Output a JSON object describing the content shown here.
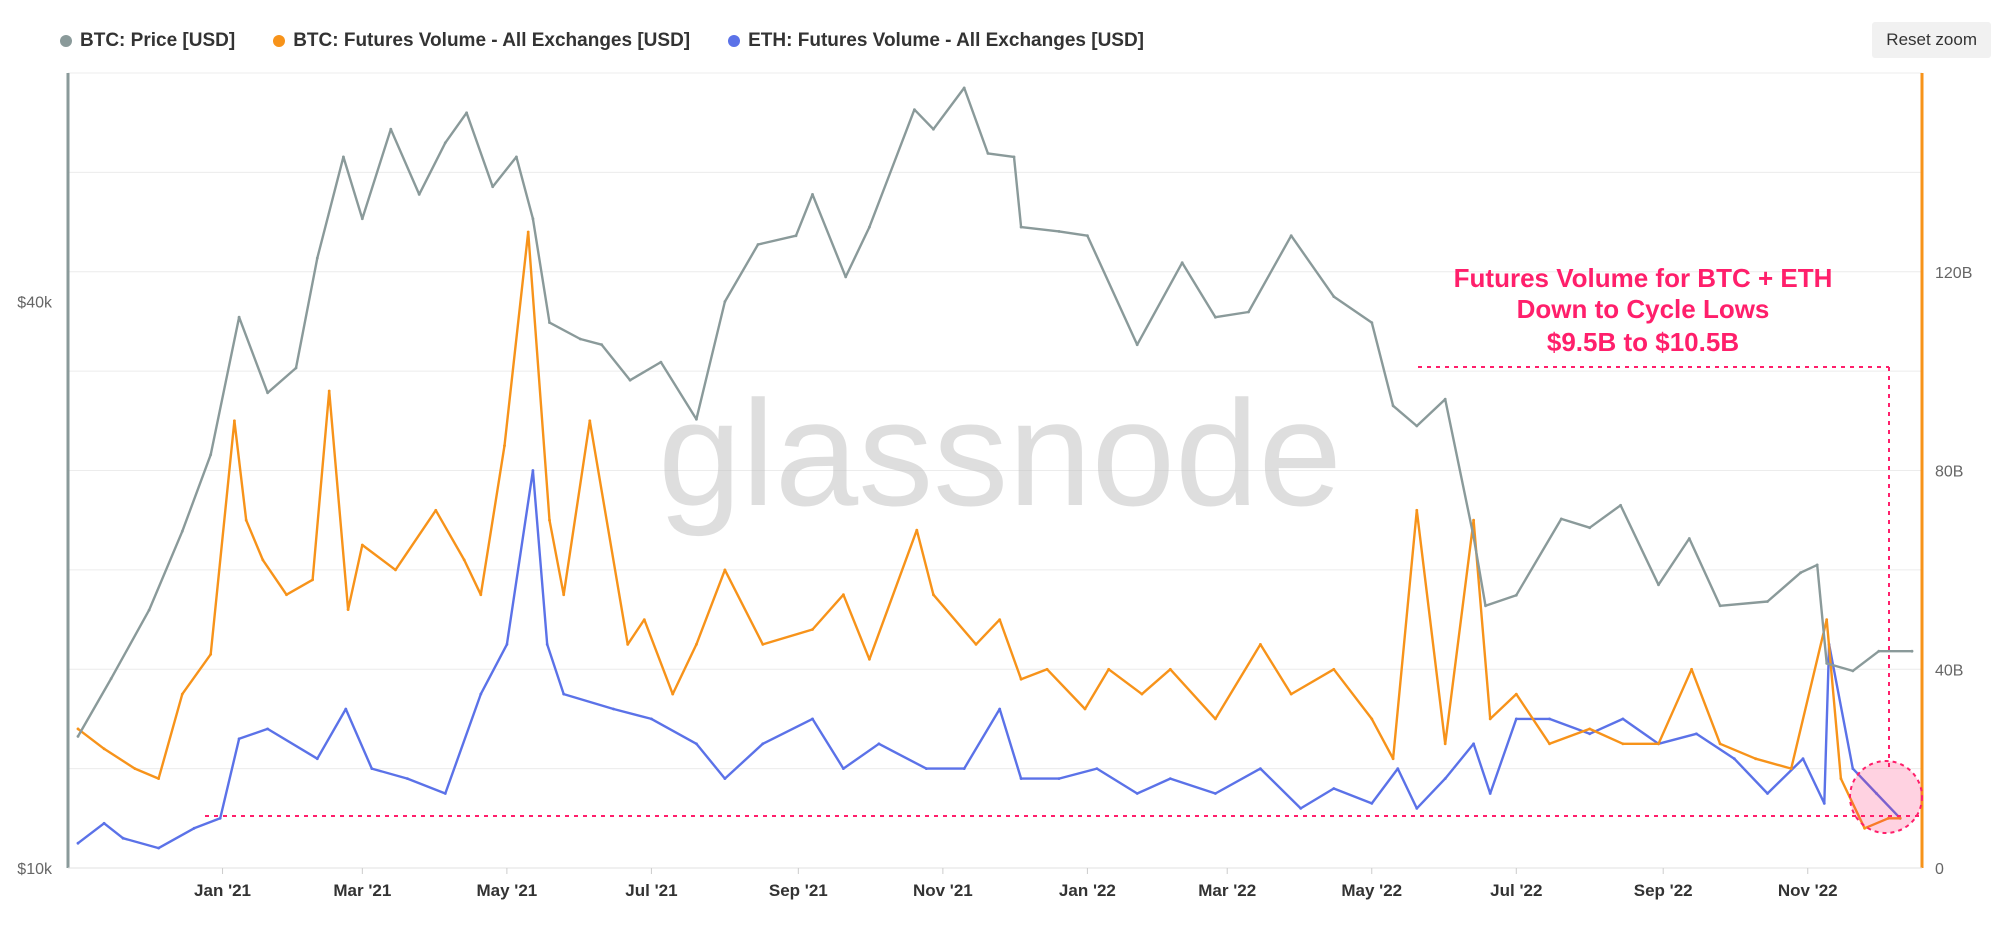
{
  "toolbar": {
    "reset_zoom_label": "Reset zoom"
  },
  "watermark": "glassnode",
  "annotation": {
    "lines": [
      "Futures Volume for BTC + ETH",
      "Down to Cycle Lows",
      "$9.5B to $10.5B"
    ],
    "color": "#ff1f6b"
  },
  "colors": {
    "btc_price": "#8a9a9a",
    "btc_futures": "#f7931a",
    "eth_futures": "#5b72e8",
    "grid": "#ececec"
  },
  "chart_data": {
    "type": "line",
    "title": "",
    "legend": [
      "BTC: Price [USD]",
      "BTC: Futures Volume - All Exchanges [USD]",
      "ETH: Futures Volume - All Exchanges [USD]"
    ],
    "legend_position": "top-left",
    "x_ticks": [
      "Jan '21",
      "Mar '21",
      "May '21",
      "Jul '21",
      "Sep '21",
      "Nov '21",
      "Jan '22",
      "Mar '22",
      "May '22",
      "Jul '22",
      "Sep '22",
      "Nov '22"
    ],
    "y_left": {
      "scale": "log",
      "ticks": [
        "$10k",
        "$40k"
      ],
      "ylim": [
        10000,
        70000
      ]
    },
    "y_right": {
      "scale": "linear",
      "ticks": [
        "0",
        "40B",
        "80B",
        "120B"
      ],
      "ylim": [
        0,
        160
      ]
    },
    "grid": true,
    "series": [
      {
        "name": "BTC: Price [USD]",
        "axis": "left",
        "x": [
          "2020-11-01",
          "2020-11-15",
          "2020-12-01",
          "2020-12-15",
          "2020-12-27",
          "2021-01-08",
          "2021-01-20",
          "2021-02-01",
          "2021-02-10",
          "2021-02-21",
          "2021-03-01",
          "2021-03-13",
          "2021-03-25",
          "2021-04-05",
          "2021-04-14",
          "2021-04-25",
          "2021-05-05",
          "2021-05-12",
          "2021-05-19",
          "2021-06-01",
          "2021-06-10",
          "2021-06-22",
          "2021-07-05",
          "2021-07-20",
          "2021-08-01",
          "2021-08-15",
          "2021-08-31",
          "2021-09-07",
          "2021-09-21",
          "2021-10-01",
          "2021-10-20",
          "2021-10-28",
          "2021-11-10",
          "2021-11-20",
          "2021-12-01",
          "2021-12-04",
          "2021-12-20",
          "2022-01-01",
          "2022-01-22",
          "2022-02-10",
          "2022-02-24",
          "2022-03-10",
          "2022-03-28",
          "2022-04-15",
          "2022-05-01",
          "2022-05-10",
          "2022-05-20",
          "2022-06-01",
          "2022-06-13",
          "2022-06-18",
          "2022-07-01",
          "2022-07-20",
          "2022-08-01",
          "2022-08-14",
          "2022-08-30",
          "2022-09-12",
          "2022-09-25",
          "2022-10-15",
          "2022-10-29",
          "2022-11-05",
          "2022-11-09",
          "2022-11-20",
          "2022-12-01",
          "2022-12-15"
        ],
        "values": [
          13800,
          15900,
          18800,
          22800,
          27500,
          38500,
          32000,
          34000,
          44500,
          57000,
          49000,
          61000,
          52000,
          59000,
          63500,
          53000,
          57000,
          49000,
          38000,
          36500,
          36000,
          33000,
          34500,
          30000,
          40000,
          46000,
          47000,
          52000,
          42500,
          48000,
          64000,
          61000,
          67500,
          57500,
          57000,
          48000,
          47500,
          47000,
          36000,
          44000,
          38500,
          39000,
          47000,
          40500,
          38000,
          31000,
          29500,
          31500,
          22500,
          19000,
          19500,
          23500,
          23000,
          24300,
          20000,
          22400,
          19000,
          19200,
          20600,
          21000,
          16500,
          16200,
          17000,
          17000
        ]
      },
      {
        "name": "BTC: Futures Volume - All Exchanges [USD]",
        "axis": "right",
        "x": [
          "2020-11-01",
          "2020-11-12",
          "2020-11-25",
          "2020-12-05",
          "2020-12-15",
          "2020-12-27",
          "2021-01-06",
          "2021-01-11",
          "2021-01-18",
          "2021-01-28",
          "2021-02-08",
          "2021-02-15",
          "2021-02-23",
          "2021-03-01",
          "2021-03-15",
          "2021-04-01",
          "2021-04-13",
          "2021-04-20",
          "2021-04-30",
          "2021-05-10",
          "2021-05-19",
          "2021-05-25",
          "2021-06-05",
          "2021-06-21",
          "2021-06-28",
          "2021-07-10",
          "2021-07-20",
          "2021-08-01",
          "2021-08-17",
          "2021-09-07",
          "2021-09-20",
          "2021-10-01",
          "2021-10-21",
          "2021-10-28",
          "2021-11-15",
          "2021-11-25",
          "2021-12-04",
          "2021-12-15",
          "2021-12-31",
          "2022-01-10",
          "2022-01-24",
          "2022-02-05",
          "2022-02-24",
          "2022-03-15",
          "2022-03-28",
          "2022-04-15",
          "2022-05-01",
          "2022-05-10",
          "2022-05-20",
          "2022-06-01",
          "2022-06-13",
          "2022-06-20",
          "2022-07-01",
          "2022-07-15",
          "2022-08-01",
          "2022-08-15",
          "2022-08-30",
          "2022-09-13",
          "2022-09-25",
          "2022-10-10",
          "2022-10-25",
          "2022-11-09",
          "2022-11-15",
          "2022-11-25",
          "2022-12-05",
          "2022-12-10"
        ],
        "values": [
          28,
          24,
          20,
          18,
          35,
          43,
          90,
          70,
          62,
          55,
          58,
          96,
          52,
          65,
          60,
          72,
          62,
          55,
          85,
          128,
          70,
          55,
          90,
          45,
          50,
          35,
          45,
          60,
          45,
          48,
          55,
          42,
          68,
          55,
          45,
          50,
          38,
          40,
          32,
          40,
          35,
          40,
          30,
          45,
          35,
          40,
          30,
          22,
          72,
          25,
          70,
          30,
          35,
          25,
          28,
          25,
          25,
          40,
          25,
          22,
          20,
          50,
          18,
          8,
          10,
          10
        ]
      },
      {
        "name": "ETH: Futures Volume - All Exchanges [USD]",
        "axis": "right",
        "x": [
          "2020-11-01",
          "2020-11-12",
          "2020-11-20",
          "2020-12-05",
          "2020-12-20",
          "2020-12-31",
          "2021-01-08",
          "2021-01-20",
          "2021-02-10",
          "2021-02-22",
          "2021-03-05",
          "2021-03-20",
          "2021-04-05",
          "2021-04-20",
          "2021-05-01",
          "2021-05-12",
          "2021-05-18",
          "2021-05-25",
          "2021-06-15",
          "2021-07-01",
          "2021-07-20",
          "2021-08-01",
          "2021-08-17",
          "2021-09-07",
          "2021-09-20",
          "2021-10-05",
          "2021-10-25",
          "2021-11-10",
          "2021-11-25",
          "2021-12-04",
          "2021-12-20",
          "2022-01-05",
          "2022-01-22",
          "2022-02-05",
          "2022-02-24",
          "2022-03-15",
          "2022-04-01",
          "2022-04-15",
          "2022-05-01",
          "2022-05-12",
          "2022-05-20",
          "2022-06-01",
          "2022-06-13",
          "2022-06-20",
          "2022-07-01",
          "2022-07-15",
          "2022-08-01",
          "2022-08-15",
          "2022-08-30",
          "2022-09-15",
          "2022-10-01",
          "2022-10-15",
          "2022-10-30",
          "2022-11-08",
          "2022-11-10",
          "2022-11-20",
          "2022-11-30",
          "2022-12-10"
        ],
        "values": [
          5,
          9,
          6,
          4,
          8,
          10,
          26,
          28,
          22,
          32,
          20,
          18,
          15,
          35,
          45,
          80,
          45,
          35,
          32,
          30,
          25,
          18,
          25,
          30,
          20,
          25,
          20,
          20,
          32,
          18,
          18,
          20,
          15,
          18,
          15,
          20,
          12,
          16,
          13,
          20,
          12,
          18,
          25,
          15,
          30,
          30,
          27,
          30,
          25,
          27,
          22,
          15,
          22,
          13,
          45,
          20,
          15,
          10
        ]
      }
    ]
  }
}
